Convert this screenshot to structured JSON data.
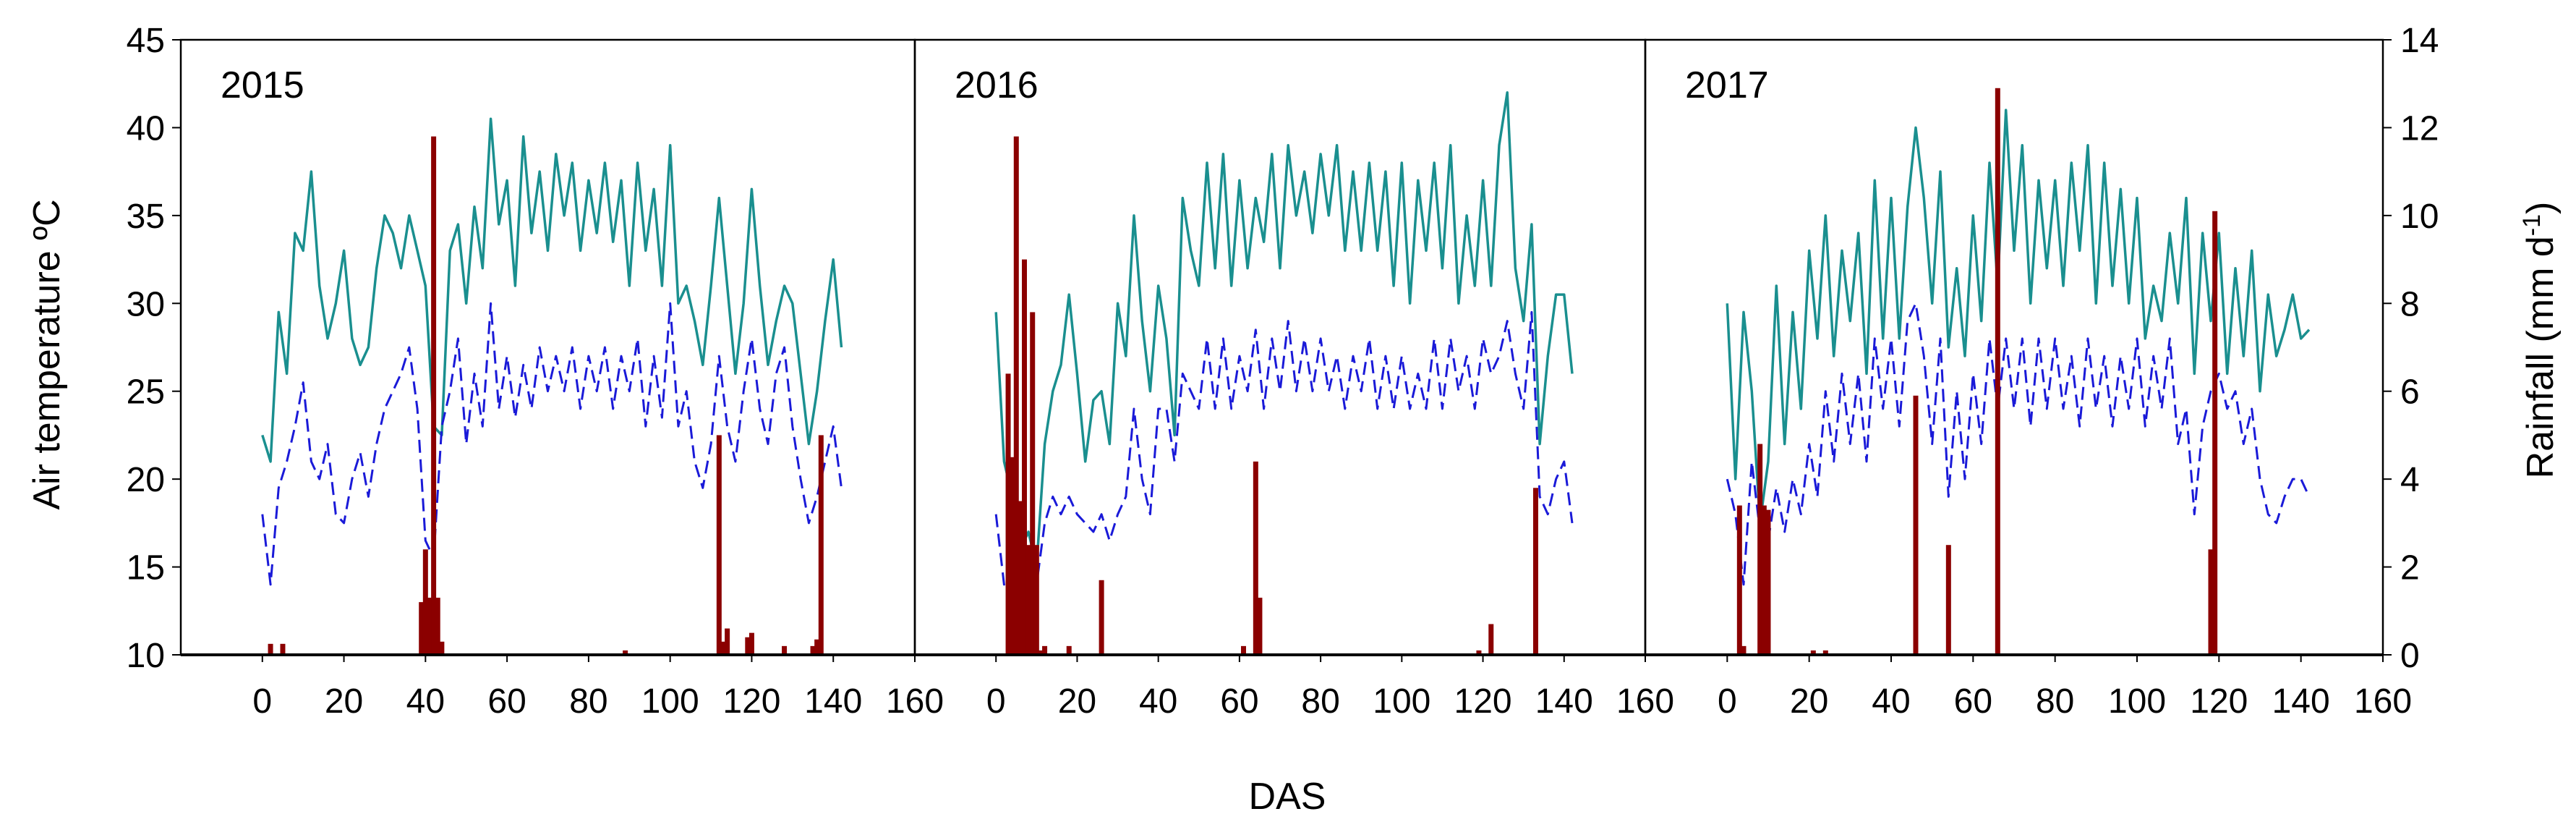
{
  "colors": {
    "max_temp": "#1a8f8f",
    "min_temp": "#1a1ad8",
    "min_temp_dark": "#14147a",
    "rainfall": "#8b0000",
    "frame": "#000000"
  },
  "labels": {
    "y_left": "Air temperature ºC",
    "y_right_main": "Rainfall (mm d",
    "y_right_sup": "-1",
    "y_right_close": ")",
    "x": "DAS"
  },
  "chart_data": [
    {
      "type": "line",
      "panel": "2015",
      "title": "2015",
      "xlabel": "DAS",
      "ylabel": "Air temperature ºC",
      "y2label": "Rainfall (mm d-1)",
      "xlim": [
        -20,
        160
      ],
      "ylim": [
        10,
        45
      ],
      "y2lim": [
        0,
        14
      ],
      "x_ticks": [
        0,
        20,
        40,
        60,
        80,
        100,
        120,
        140,
        160
      ],
      "y_ticks": [
        10,
        15,
        20,
        25,
        30,
        35,
        40,
        45
      ],
      "y2_ticks": [],
      "series": [
        {
          "key": "max",
          "axis": "left",
          "style": "solid",
          "x": [
            0,
            2,
            4,
            6,
            8,
            10,
            12,
            14,
            16,
            18,
            20,
            22,
            24,
            26,
            28,
            30,
            32,
            34,
            36,
            38,
            40,
            42,
            44,
            46,
            48,
            50,
            52,
            54,
            56,
            58,
            60,
            62,
            64,
            66,
            68,
            70,
            72,
            74,
            76,
            78,
            80,
            82,
            84,
            86,
            88,
            90,
            92,
            94,
            96,
            98,
            100,
            102,
            104,
            106,
            108,
            110,
            112,
            114,
            116,
            118,
            120,
            122,
            124,
            126,
            128,
            130,
            132,
            134,
            136,
            138,
            140,
            142
          ],
          "y": [
            22.5,
            21,
            29.5,
            26,
            34,
            33,
            37.5,
            31,
            28,
            30,
            33,
            28,
            26.5,
            27.5,
            32,
            35,
            34,
            32,
            35,
            33,
            31,
            23,
            22.5,
            33,
            34.5,
            30,
            35.5,
            32,
            40.5,
            34.5,
            37,
            31,
            39.5,
            34,
            37.5,
            33,
            38.5,
            35,
            38,
            33,
            37,
            34,
            38,
            33.5,
            37,
            31,
            38,
            33,
            36.5,
            31,
            39,
            30,
            31,
            29,
            26.5,
            31,
            36,
            31,
            26,
            30,
            36.5,
            31,
            26.5,
            29,
            31,
            30,
            26,
            22,
            25,
            29,
            32.5,
            27.5
          ]
        },
        {
          "key": "min",
          "axis": "left",
          "style": "dashed",
          "x": [
            0,
            2,
            4,
            6,
            8,
            10,
            12,
            14,
            16,
            18,
            20,
            22,
            24,
            26,
            28,
            30,
            32,
            34,
            36,
            38,
            40,
            42,
            44,
            46,
            48,
            50,
            52,
            54,
            56,
            58,
            60,
            62,
            64,
            66,
            68,
            70,
            72,
            74,
            76,
            78,
            80,
            82,
            84,
            86,
            88,
            90,
            92,
            94,
            96,
            98,
            100,
            102,
            104,
            106,
            108,
            110,
            112,
            114,
            116,
            118,
            120,
            122,
            124,
            126,
            128,
            130,
            132,
            134,
            136,
            138,
            140,
            142
          ],
          "y": [
            18,
            14,
            19.5,
            21,
            23,
            25.5,
            21,
            20,
            22,
            18,
            17.5,
            20,
            21.5,
            19,
            22,
            24,
            25,
            26,
            27.5,
            24,
            16.5,
            15.5,
            23,
            25,
            28,
            22,
            26,
            23,
            30,
            24,
            27,
            23.5,
            26.5,
            24,
            27.5,
            25,
            27,
            25,
            27.5,
            24,
            27,
            25,
            27.5,
            24,
            27,
            25,
            28,
            23,
            27,
            23.5,
            30,
            23,
            25,
            21,
            19.5,
            22,
            27,
            23,
            21,
            25,
            28,
            24,
            22,
            26,
            27.5,
            23,
            20,
            17.5,
            19,
            21,
            23,
            19.5
          ]
        },
        {
          "key": "rain",
          "axis": "right",
          "style": "bar",
          "x": [
            2,
            5,
            39,
            40,
            41,
            42,
            43,
            44,
            89,
            112,
            113,
            114,
            119,
            120,
            128,
            135,
            136,
            137
          ],
          "y": [
            0.25,
            0.25,
            1.2,
            2.4,
            1.3,
            11.8,
            1.3,
            0.3,
            0.1,
            5,
            0.3,
            0.6,
            0.4,
            0.5,
            0.2,
            0.2,
            0.35,
            5
          ]
        }
      ]
    },
    {
      "type": "line",
      "panel": "2016",
      "title": "2016",
      "xlabel": "DAS",
      "ylabel": "Air temperature ºC",
      "y2label": "Rainfall (mm d-1)",
      "xlim": [
        -20,
        160
      ],
      "ylim": [
        10,
        45
      ],
      "y2lim": [
        0,
        14
      ],
      "x_ticks": [
        0,
        20,
        40,
        60,
        80,
        100,
        120,
        140,
        160
      ],
      "y_ticks": [],
      "y2_ticks": [],
      "series": [
        {
          "key": "max",
          "axis": "left",
          "style": "solid",
          "x": [
            0,
            2,
            4,
            6,
            8,
            10,
            12,
            14,
            16,
            18,
            20,
            22,
            24,
            26,
            28,
            30,
            32,
            34,
            36,
            38,
            40,
            42,
            44,
            46,
            48,
            50,
            52,
            54,
            56,
            58,
            60,
            62,
            64,
            66,
            68,
            70,
            72,
            74,
            76,
            78,
            80,
            82,
            84,
            86,
            88,
            90,
            92,
            94,
            96,
            98,
            100,
            102,
            104,
            106,
            108,
            110,
            112,
            114,
            116,
            118,
            120,
            122,
            124,
            126,
            128,
            130,
            132,
            134,
            136,
            138,
            140,
            142
          ],
          "y": [
            29.5,
            21,
            19,
            16,
            17,
            15,
            22,
            25,
            26.5,
            30.5,
            26,
            21,
            24.5,
            25,
            22,
            30,
            27,
            35,
            29,
            25,
            31,
            28,
            22.5,
            36,
            33,
            31,
            38,
            32,
            38.5,
            31,
            37,
            32,
            36,
            33.5,
            38.5,
            32,
            39,
            35,
            37.5,
            34,
            38.5,
            35,
            39,
            33,
            37.5,
            33,
            38,
            33,
            37.5,
            31,
            38,
            30,
            37,
            33,
            38,
            32,
            39,
            30,
            35,
            31,
            37,
            31,
            39,
            42,
            32,
            29,
            34.5,
            22,
            27,
            30.5,
            30.5,
            26
          ]
        },
        {
          "key": "min",
          "axis": "left",
          "style": "dashed",
          "x": [
            0,
            2,
            4,
            6,
            8,
            10,
            12,
            14,
            16,
            18,
            20,
            22,
            24,
            26,
            28,
            30,
            32,
            34,
            36,
            38,
            40,
            42,
            44,
            46,
            48,
            50,
            52,
            54,
            56,
            58,
            60,
            62,
            64,
            66,
            68,
            70,
            72,
            74,
            76,
            78,
            80,
            82,
            84,
            86,
            88,
            90,
            92,
            94,
            96,
            98,
            100,
            102,
            104,
            106,
            108,
            110,
            112,
            114,
            116,
            118,
            120,
            122,
            124,
            126,
            128,
            130,
            132,
            134,
            136,
            138,
            140,
            142
          ],
          "y": [
            18,
            14,
            14.5,
            14,
            16,
            14,
            17.5,
            19,
            18,
            19,
            18,
            17.5,
            17,
            18,
            16.5,
            18,
            19,
            24,
            20,
            18,
            24,
            24,
            21,
            26,
            25,
            24,
            28,
            24,
            28,
            24,
            27,
            25,
            28.5,
            24,
            28,
            25,
            29,
            25,
            28,
            25,
            28,
            25,
            27,
            24,
            27,
            25,
            28,
            24,
            27,
            24,
            27,
            24,
            26,
            24,
            28,
            24,
            28,
            25,
            27,
            24,
            28,
            26,
            27,
            29,
            26,
            24,
            29.5,
            19,
            18,
            20,
            21,
            17.5
          ]
        },
        {
          "key": "rain",
          "axis": "right",
          "style": "bar",
          "x": [
            3,
            4,
            5,
            6,
            7,
            8,
            9,
            10,
            11,
            12,
            18,
            26,
            61,
            64,
            65,
            119,
            122,
            133
          ],
          "y": [
            6.4,
            4.5,
            11.8,
            3.5,
            9,
            2.5,
            7.8,
            2.5,
            0.1,
            0.2,
            0.2,
            1.7,
            0.2,
            4.4,
            1.3,
            0.1,
            0.7,
            3.8
          ]
        }
      ]
    },
    {
      "type": "line",
      "panel": "2017",
      "title": "2017",
      "xlabel": "DAS",
      "ylabel": "Air temperature ºC",
      "y2label": "Rainfall (mm d-1)",
      "xlim": [
        -20,
        160
      ],
      "ylim": [
        10,
        45
      ],
      "y2lim": [
        0,
        14
      ],
      "x_ticks": [
        0,
        20,
        40,
        60,
        80,
        100,
        120,
        140,
        160
      ],
      "y_ticks": [],
      "y2_ticks": [
        0,
        2,
        4,
        6,
        8,
        10,
        12,
        14
      ],
      "series": [
        {
          "key": "max",
          "axis": "left",
          "style": "solid",
          "x": [
            0,
            2,
            4,
            6,
            8,
            10,
            12,
            14,
            16,
            18,
            20,
            22,
            24,
            26,
            28,
            30,
            32,
            34,
            36,
            38,
            40,
            42,
            44,
            46,
            48,
            50,
            52,
            54,
            56,
            58,
            60,
            62,
            64,
            66,
            68,
            70,
            72,
            74,
            76,
            78,
            80,
            82,
            84,
            86,
            88,
            90,
            92,
            94,
            96,
            98,
            100,
            102,
            104,
            106,
            108,
            110,
            112,
            114,
            116,
            118,
            120,
            122,
            124,
            126,
            128,
            130,
            132,
            134,
            136,
            138,
            140,
            142
          ],
          "y": [
            30,
            20,
            29.5,
            25,
            17.5,
            21,
            31,
            22,
            29.5,
            24,
            33,
            28,
            35,
            27,
            33,
            29,
            34,
            26,
            37,
            28,
            36,
            28,
            35.5,
            40,
            36,
            30,
            37.5,
            27.5,
            32,
            27,
            35,
            29,
            38,
            31,
            41,
            33,
            39,
            30,
            37,
            32,
            37,
            31,
            38,
            33,
            39,
            30,
            38,
            31,
            36.5,
            30,
            36,
            28,
            31,
            29,
            34,
            30,
            36,
            26,
            34,
            29,
            34,
            26,
            32,
            27,
            33,
            25,
            30.5,
            27,
            28.5,
            30.5,
            28,
            28.5
          ]
        },
        {
          "key": "min",
          "axis": "left",
          "style": "dashed",
          "x": [
            0,
            2,
            4,
            6,
            8,
            10,
            12,
            14,
            16,
            18,
            20,
            22,
            24,
            26,
            28,
            30,
            32,
            34,
            36,
            38,
            40,
            42,
            44,
            46,
            48,
            50,
            52,
            54,
            56,
            58,
            60,
            62,
            64,
            66,
            68,
            70,
            72,
            74,
            76,
            78,
            80,
            82,
            84,
            86,
            88,
            90,
            92,
            94,
            96,
            98,
            100,
            102,
            104,
            106,
            108,
            110,
            112,
            114,
            116,
            118,
            120,
            122,
            124,
            126,
            128,
            130,
            132,
            134,
            136,
            138,
            140,
            142
          ],
          "y": [
            20,
            18,
            14,
            21,
            17,
            16.5,
            19.5,
            17,
            20,
            18,
            22,
            19,
            25,
            21,
            26,
            22,
            26,
            21,
            28,
            24,
            28,
            23,
            29,
            30,
            27,
            22,
            28,
            19,
            25,
            20,
            26,
            22,
            28,
            24,
            28,
            24,
            28,
            23,
            28,
            24,
            28,
            24,
            27,
            23,
            28,
            24,
            27,
            23,
            27,
            24,
            28,
            23,
            27,
            24,
            28,
            22,
            24,
            18,
            23,
            25,
            26,
            24,
            25,
            22,
            24,
            20,
            18,
            17.5,
            19,
            20,
            20,
            19
          ]
        },
        {
          "key": "rain",
          "axis": "right",
          "style": "bar",
          "x": [
            3,
            4,
            8,
            9,
            10,
            21,
            24,
            46,
            54,
            66,
            118,
            119
          ],
          "y": [
            3.4,
            0.2,
            4.8,
            3.4,
            3.3,
            0.1,
            0.1,
            5.9,
            2.5,
            12.9,
            2.4,
            10.1
          ]
        }
      ]
    }
  ]
}
